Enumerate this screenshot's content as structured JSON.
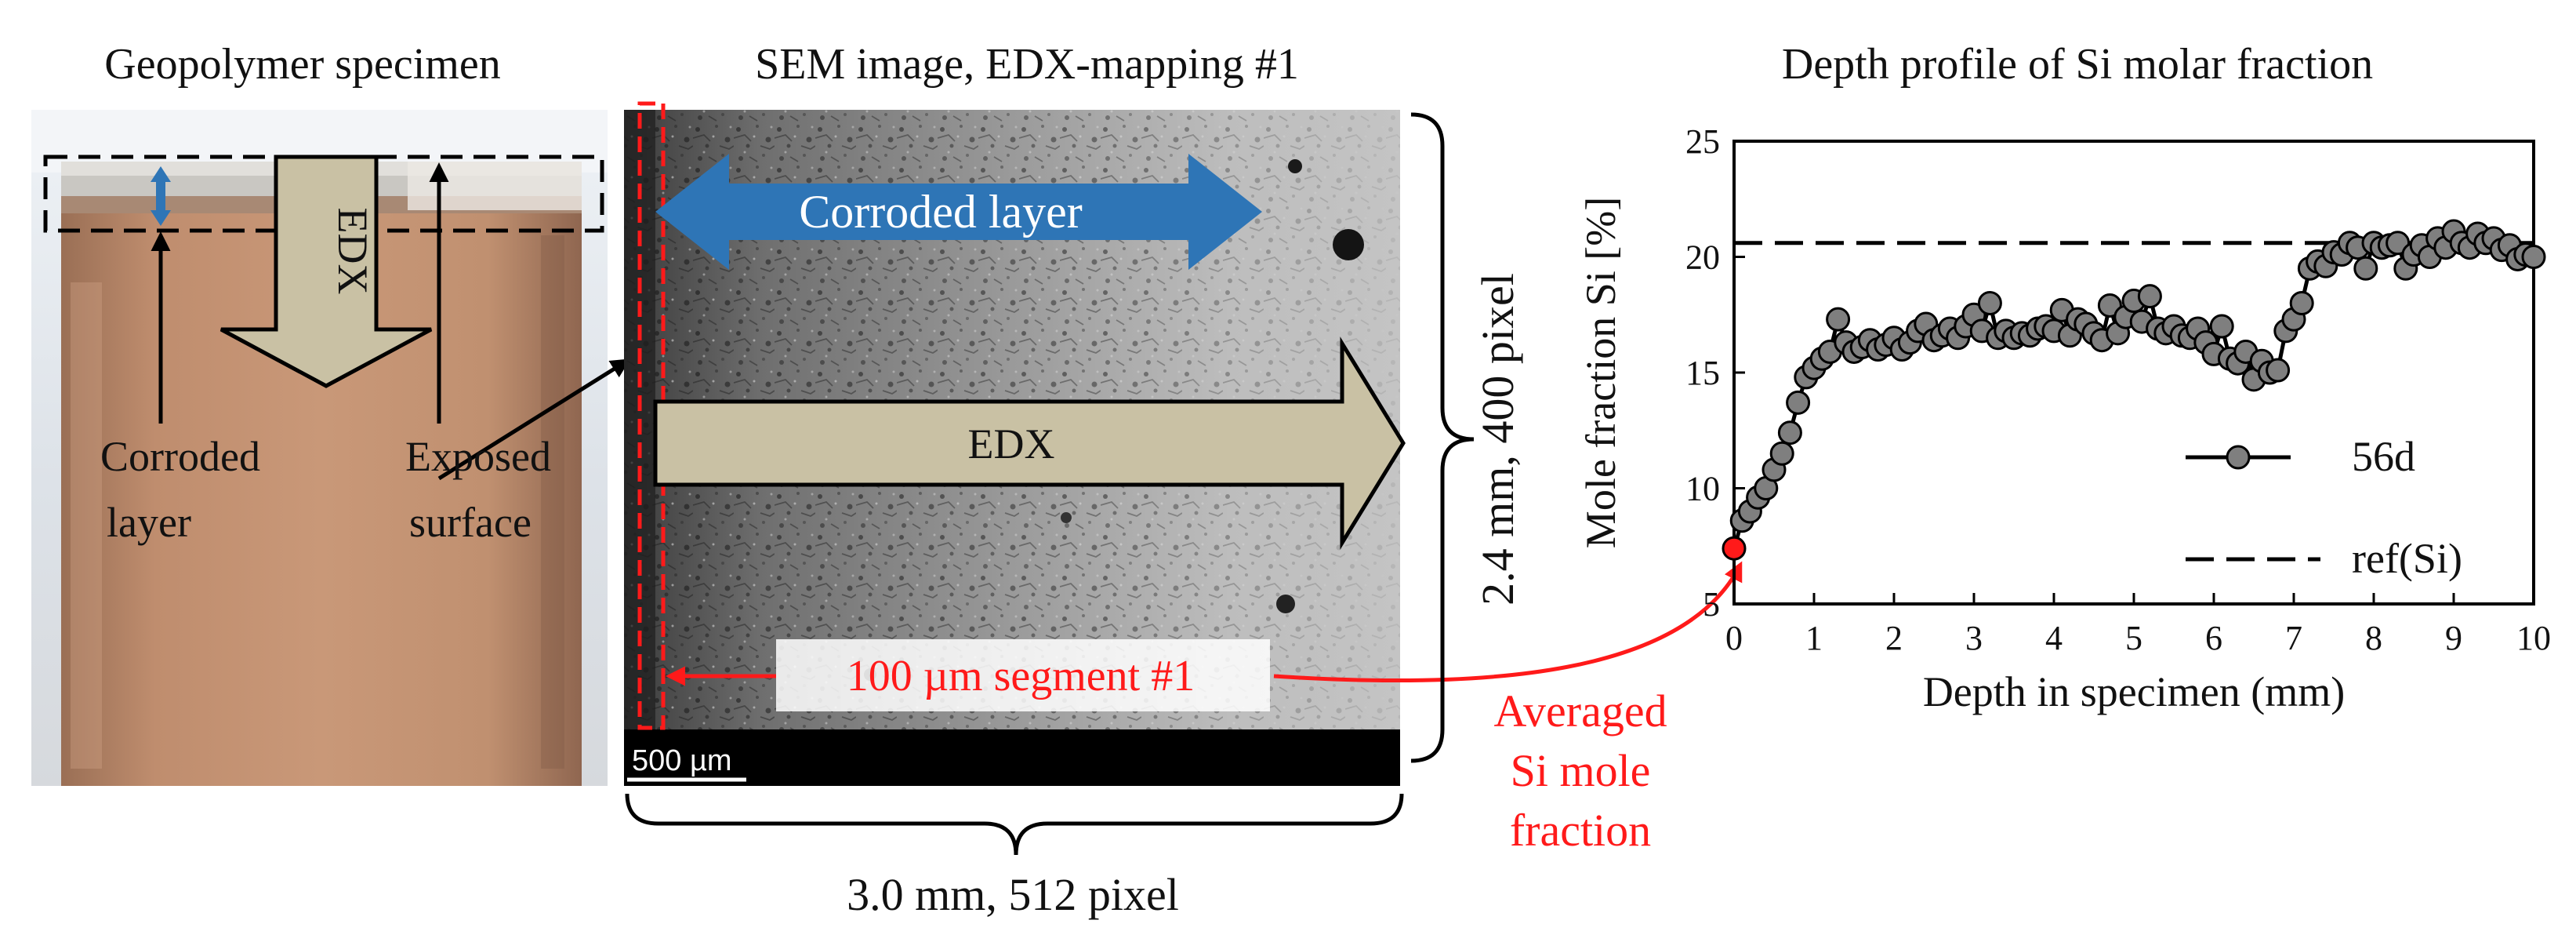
{
  "panels": {
    "specimen": {
      "title": "Geopolymer specimen",
      "edx_arrow_label": "EDX",
      "corroded_label": [
        "Corroded",
        "layer"
      ],
      "exposed_label": [
        "Exposed",
        "surface"
      ]
    },
    "sem": {
      "title": "SEM image, EDX-mapping #1",
      "corroded_arrow_label": "Corroded layer",
      "edx_arrow_label": "EDX",
      "segment_label": "100 µm segment #1",
      "scale_bar_label": "500 µm",
      "height_label": "2.4 mm, 400 pixel",
      "width_label": "3.0 mm, 512 pixel",
      "averaged_label": [
        "Averaged",
        "Si mole",
        "fraction"
      ]
    },
    "profile": {
      "title": "Depth profile of Si molar fraction"
    }
  },
  "colors": {
    "edx_arrow": "#c9c1a4",
    "corroded_arrow": "#2e75b6",
    "marker": "#7f7f7f",
    "highlight": "#ff1a1a"
  },
  "chart_data": {
    "type": "line",
    "title": "Depth profile of Si molar fraction",
    "xlabel": "Depth in specimen (mm)",
    "ylabel": "Mole fraction Si [%]",
    "xlim": [
      0,
      10
    ],
    "ylim": [
      5,
      25
    ],
    "xticks": [
      "0",
      "1",
      "2",
      "3",
      "4",
      "5",
      "6",
      "7",
      "8",
      "9",
      "10"
    ],
    "yticks": [
      "5",
      "10",
      "15",
      "20",
      "25"
    ],
    "grid": false,
    "legend": "right",
    "series": [
      {
        "name": "56d",
        "x": [
          0.0,
          0.1,
          0.2,
          0.3,
          0.4,
          0.5,
          0.6,
          0.7,
          0.8,
          0.9,
          1.0,
          1.1,
          1.2,
          1.3,
          1.4,
          1.5,
          1.6,
          1.7,
          1.8,
          1.9,
          2.0,
          2.1,
          2.2,
          2.3,
          2.4,
          2.5,
          2.6,
          2.7,
          2.8,
          2.9,
          3.0,
          3.1,
          3.2,
          3.3,
          3.4,
          3.5,
          3.6,
          3.7,
          3.8,
          3.9,
          4.0,
          4.1,
          4.2,
          4.3,
          4.4,
          4.5,
          4.6,
          4.7,
          4.8,
          4.9,
          5.0,
          5.1,
          5.2,
          5.3,
          5.4,
          5.5,
          5.6,
          5.7,
          5.8,
          5.9,
          6.0,
          6.1,
          6.2,
          6.3,
          6.4,
          6.5,
          6.6,
          6.7,
          6.8,
          6.9,
          7.0,
          7.1,
          7.2,
          7.3,
          7.4,
          7.5,
          7.6,
          7.7,
          7.8,
          7.9,
          8.0,
          8.1,
          8.2,
          8.3,
          8.4,
          8.5,
          8.6,
          8.7,
          8.8,
          8.9,
          9.0,
          9.1,
          9.2,
          9.3,
          9.4,
          9.5,
          9.6,
          9.7,
          9.8,
          9.9,
          10.0
        ],
        "y": [
          7.4,
          8.6,
          9.0,
          9.6,
          10.0,
          10.8,
          11.5,
          12.4,
          13.7,
          14.8,
          15.2,
          15.6,
          15.9,
          17.3,
          16.3,
          15.9,
          16.1,
          16.4,
          16.0,
          16.2,
          16.5,
          16.0,
          16.3,
          16.8,
          17.1,
          16.4,
          16.6,
          16.9,
          16.5,
          17.0,
          17.5,
          16.8,
          18.0,
          16.5,
          16.8,
          16.5,
          16.7,
          16.6,
          16.9,
          17.0,
          16.8,
          17.7,
          16.6,
          17.3,
          17.1,
          16.7,
          16.4,
          17.9,
          16.7,
          17.4,
          18.1,
          17.2,
          18.3,
          16.9,
          16.7,
          17.0,
          16.6,
          16.5,
          16.9,
          16.3,
          15.8,
          17.0,
          15.6,
          15.4,
          15.9,
          14.7,
          15.5,
          15.0,
          15.1,
          16.8,
          17.3,
          18.0,
          19.5,
          19.8,
          19.6,
          20.2,
          20.1,
          20.6,
          20.4,
          19.5,
          20.6,
          20.4,
          20.5,
          20.6,
          19.5,
          20.1,
          20.5,
          20.0,
          20.8,
          20.4,
          21.1,
          20.6,
          20.4,
          21.0,
          20.6,
          20.8,
          20.3,
          20.5,
          19.9,
          20.1,
          20.0
        ]
      },
      {
        "name": "ref(Si)",
        "x": [
          0,
          10
        ],
        "y": [
          20.6,
          20.6
        ]
      }
    ]
  }
}
